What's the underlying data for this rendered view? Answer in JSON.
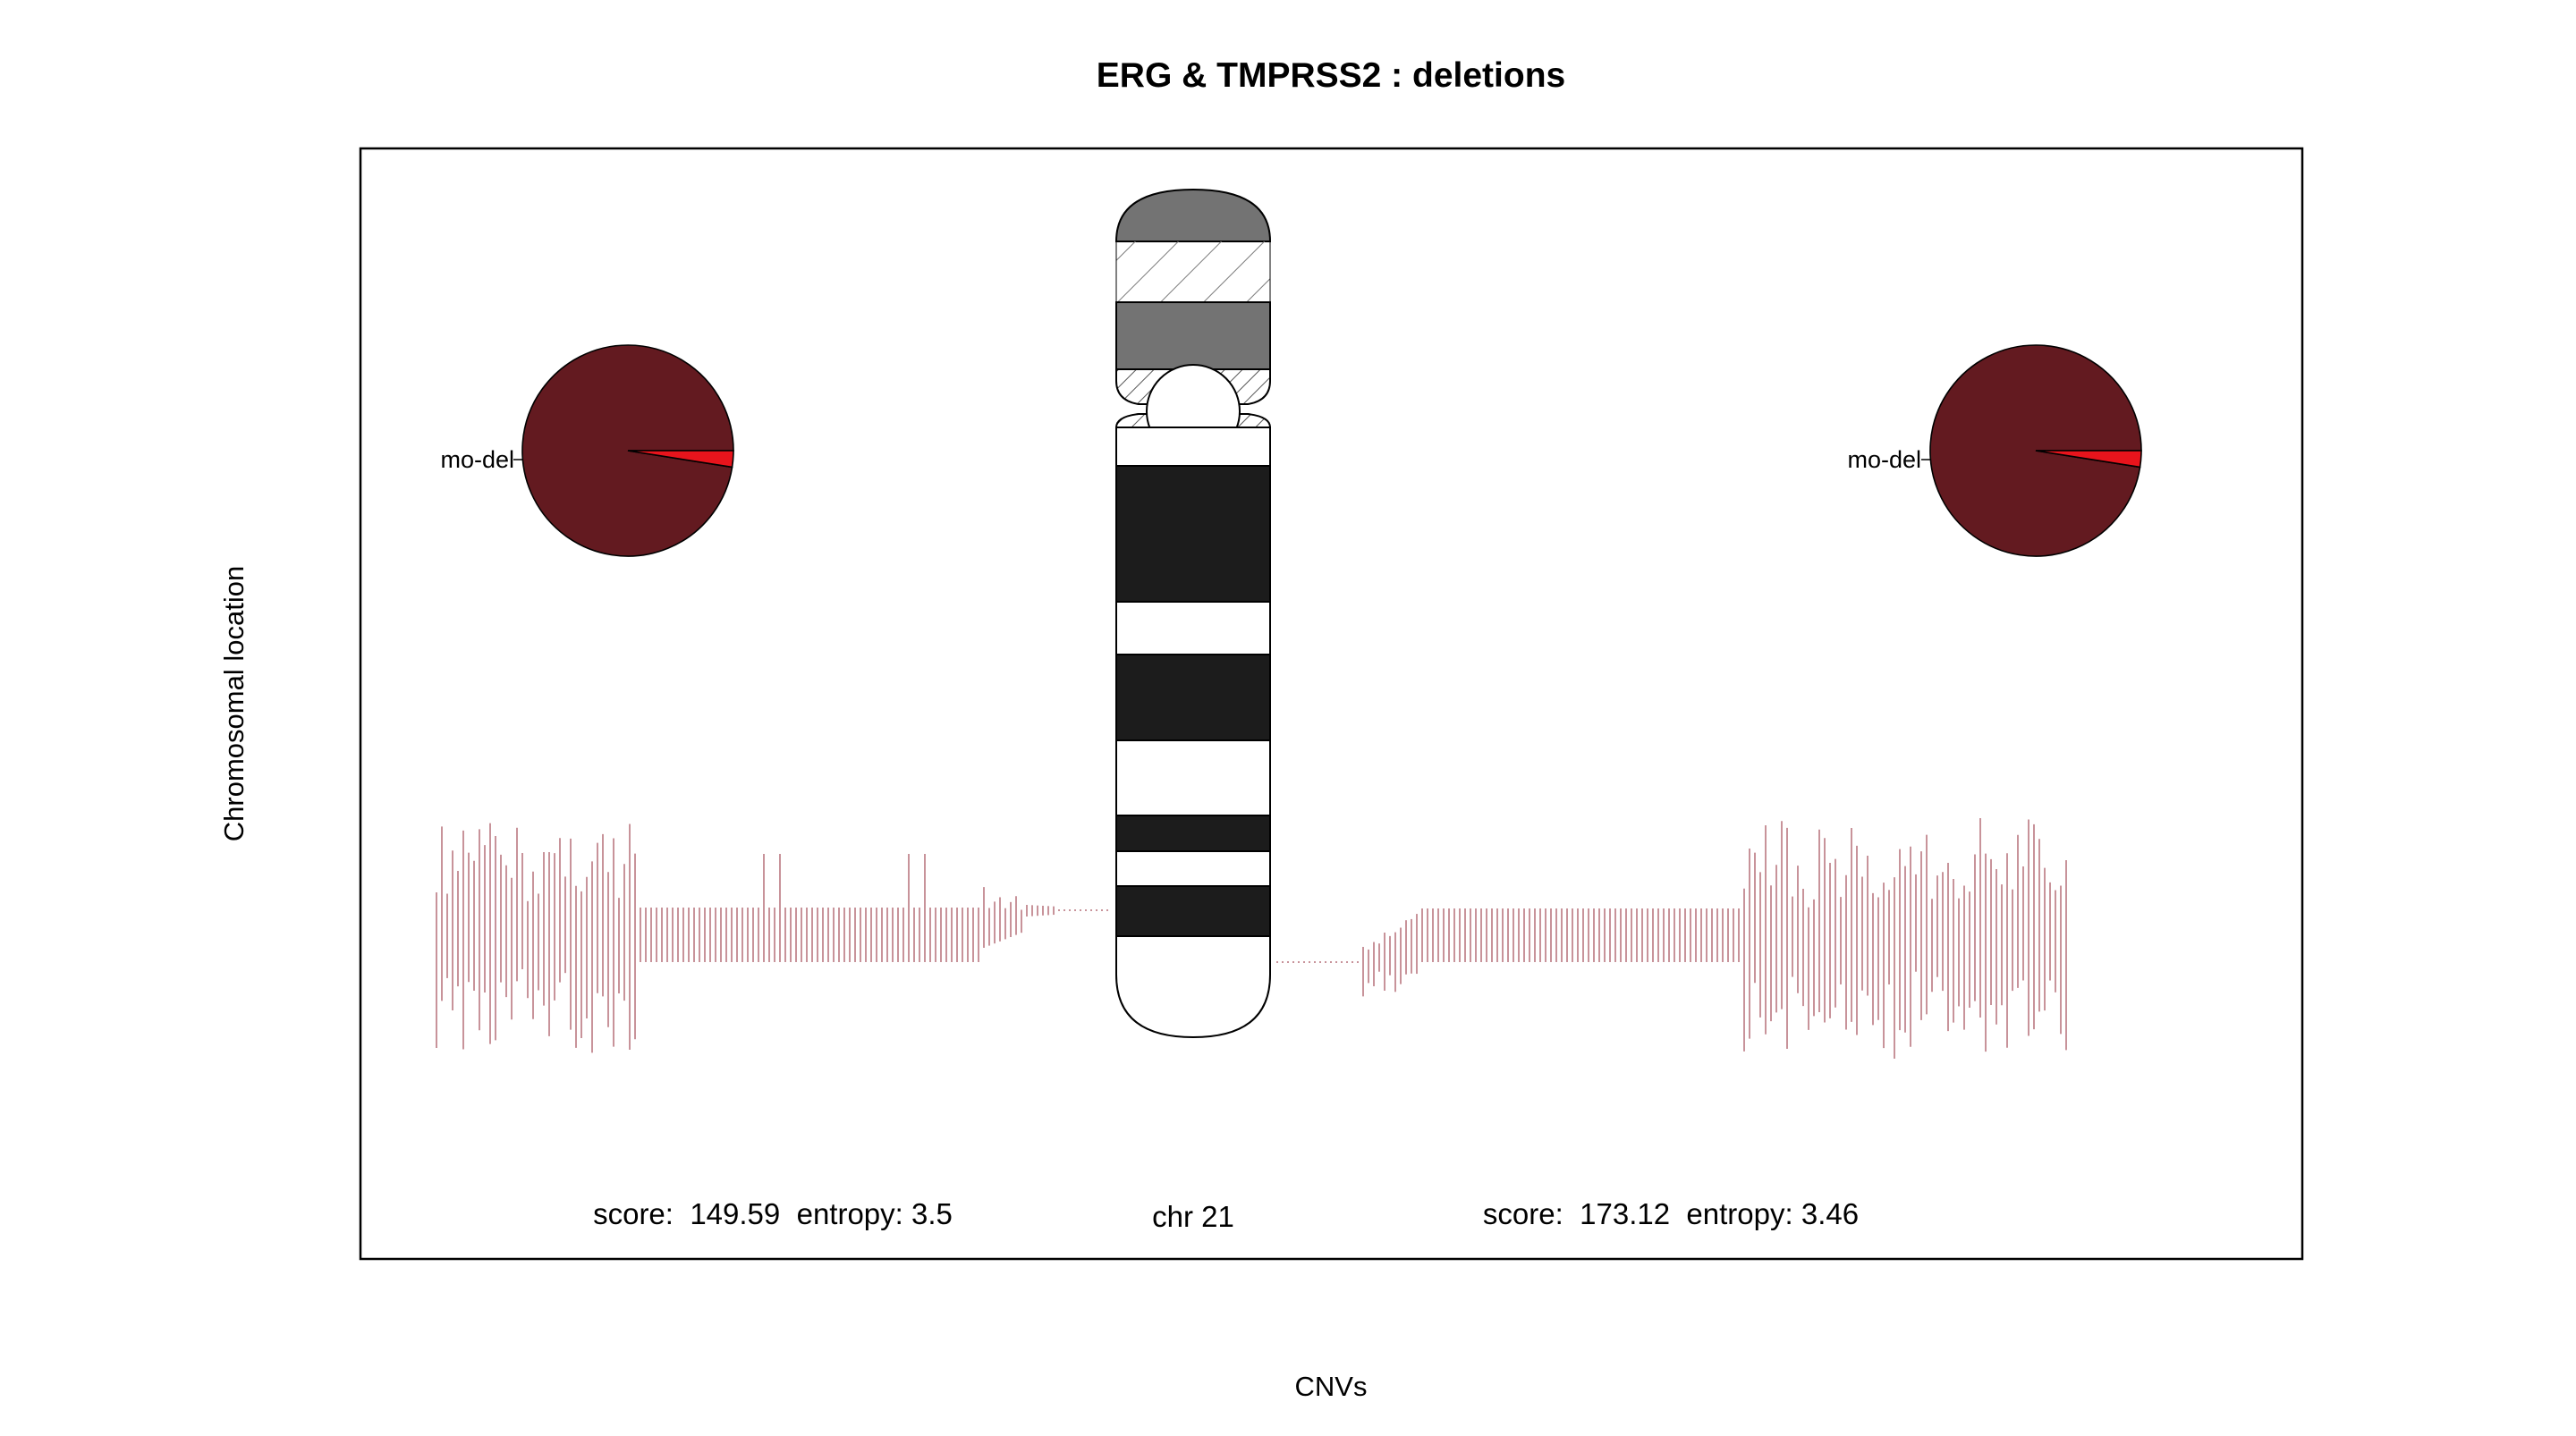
{
  "title": "ERG & TMPRSS2 : deletions",
  "xlabel": "CNVs",
  "ylabel": "Chromosomal location",
  "chromosome_label": "chr 21",
  "colors": {
    "pie_main": "#631a20",
    "pie_slice": "#e8141c",
    "cnv_line": "#c8939a",
    "band_dark": "#1c1c1c",
    "band_gray": "#737373",
    "band_light": "#ffffff",
    "frame": "#000000"
  },
  "chart_data": {
    "type": "ideogram",
    "title": "ERG & TMPRSS2 : deletions",
    "xlabel": "CNVs",
    "ylabel": "Chromosomal location",
    "grid": false,
    "chromosome": "chr 21",
    "panels": [
      {
        "side": "left",
        "score_label": "score:",
        "score": "149.59",
        "entropy_label": "entropy:",
        "entropy": "3.5",
        "pie": {
          "labels": [
            "mo-del",
            ""
          ],
          "values": [
            0.975,
            0.025
          ]
        }
      },
      {
        "side": "right",
        "score_label": "score:",
        "score": "173.12",
        "entropy_label": "entropy:",
        "entropy": "3.46",
        "pie": {
          "labels": [
            "mo-del",
            ""
          ],
          "values": [
            0.975,
            0.025
          ]
        }
      }
    ]
  }
}
